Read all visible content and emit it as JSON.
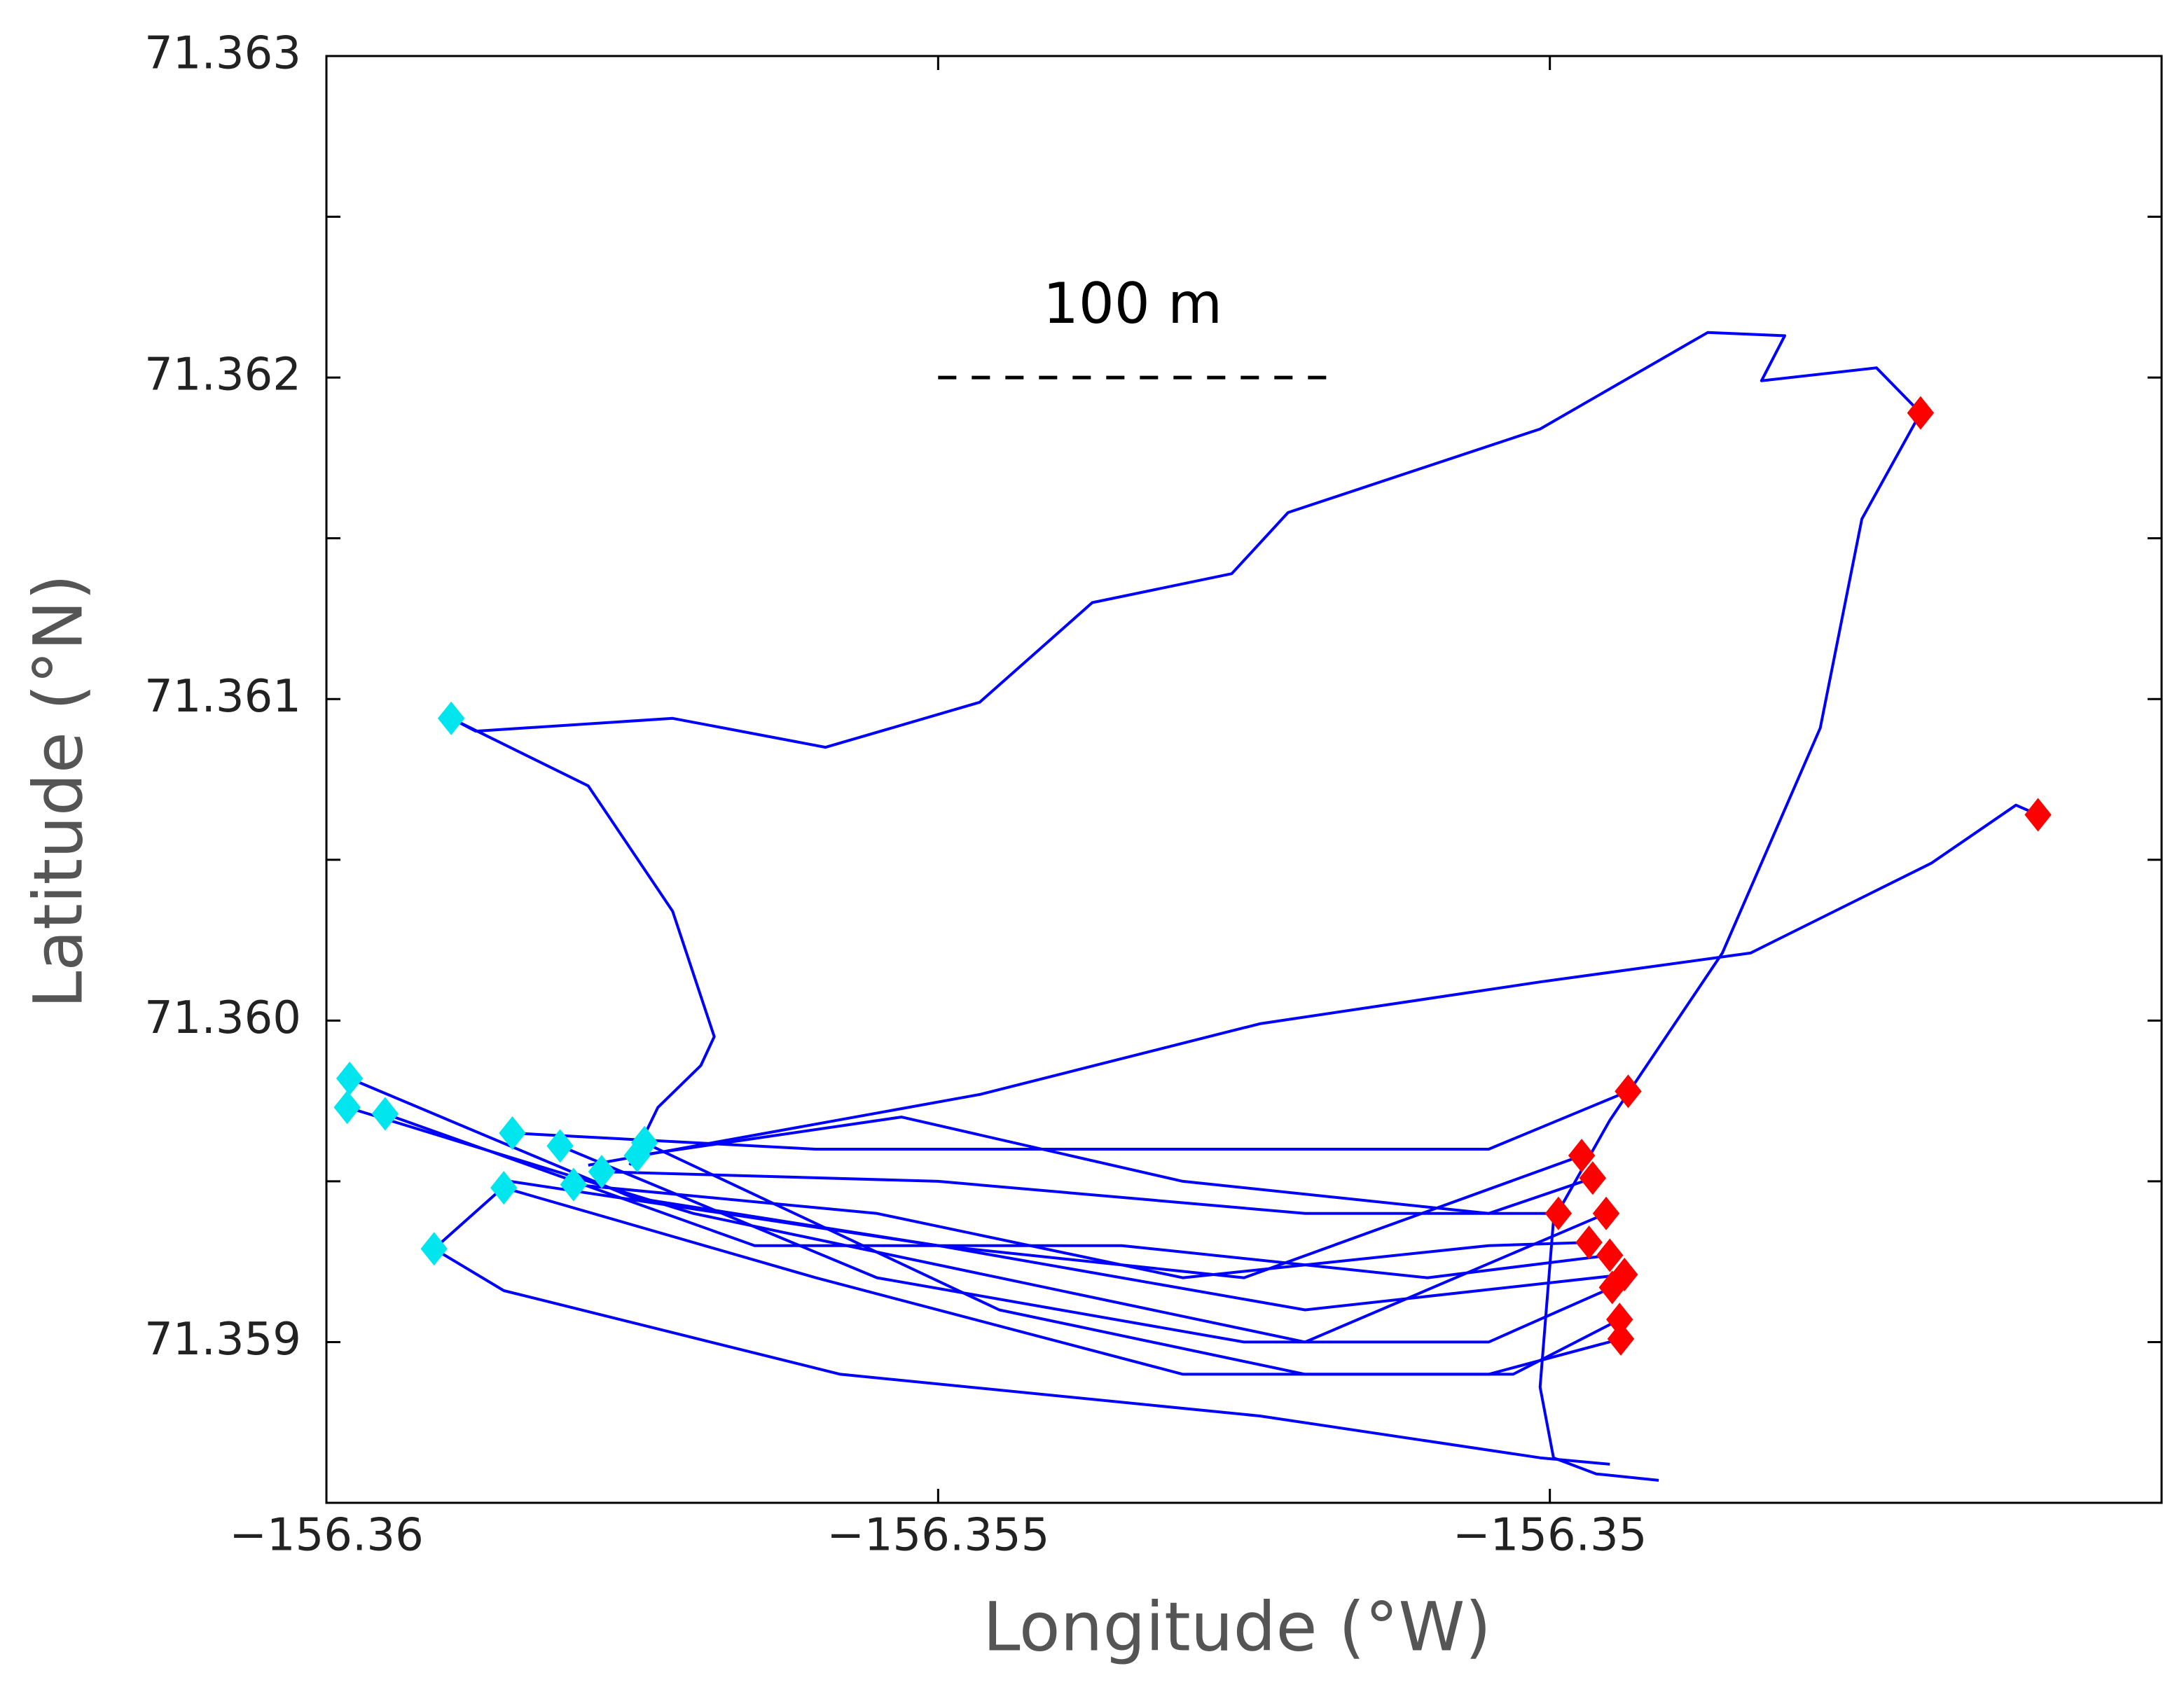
{
  "chart_data": {
    "type": "line",
    "x_label": "Longitude (°W)",
    "y_label": "Latitude (°N)",
    "xlim": [
      -156.36,
      -156.345
    ],
    "ylim": [
      71.3585,
      71.363
    ],
    "xticks": [
      {
        "value": -156.36,
        "label": "−156.36"
      },
      {
        "value": -156.355,
        "label": "−156.355"
      },
      {
        "value": -156.35,
        "label": "−156.35"
      }
    ],
    "yticks": [
      71.363,
      71.362,
      71.361,
      {
        "value": 71.36,
        "label": "71.360"
      },
      71.359
    ],
    "yticks_minor": [
      71.3625,
      71.3615,
      71.3605,
      71.3595
    ],
    "scale_bar": {
      "label": "100 m",
      "x": [
        -156.355,
        -156.35182
      ],
      "y": 71.362
    },
    "track_color": "#0000ff",
    "tracks": [
      {
        "x": [
          -156.35898,
          -156.35878,
          -156.35717,
          -156.35592,
          -156.35466,
          -156.35374,
          -156.3526,
          -156.35214,
          -156.35008,
          -156.34871,
          -156.34808,
          -156.34827,
          -156.34733,
          -156.34697
        ],
        "y": [
          71.36094,
          71.3609,
          71.36094,
          71.36085,
          71.36099,
          71.3613,
          71.36139,
          71.36158,
          71.36184,
          71.36214,
          71.36213,
          71.36199,
          71.36203,
          71.36189
        ]
      },
      {
        "x": [
          -156.34697,
          -156.34745,
          -156.34779,
          -156.34859,
          -156.34951,
          -156.34997,
          -156.35008,
          -156.34997,
          -156.34962,
          -156.34911
        ],
        "y": [
          71.36189,
          71.36156,
          71.36091,
          71.36021,
          71.35969,
          71.35938,
          71.35886,
          71.35864,
          71.35859,
          71.35857
        ]
      },
      {
        "x": [
          -156.35786,
          -156.35466,
          -156.35237,
          -156.35008,
          -156.34836,
          -156.34688,
          -156.34619,
          -156.34601
        ],
        "y": [
          71.35955,
          71.35977,
          71.35999,
          71.36012,
          71.36021,
          71.36049,
          71.36067,
          71.36064
        ]
      },
      {
        "x": [
          -156.35912,
          -156.35855,
          -156.3558,
          -156.35237,
          -156.35008,
          -156.34951
        ],
        "y": [
          71.35929,
          71.35916,
          71.3589,
          71.35877,
          71.35864,
          71.35862
        ]
      },
      {
        "x": [
          -156.35898,
          -156.35786,
          -156.35717,
          -156.35683,
          -156.35694,
          -156.35729,
          -156.35752
        ],
        "y": [
          71.36094,
          71.36073,
          71.36034,
          71.35995,
          71.35986,
          71.35973,
          71.35955
        ]
      },
      {
        "x": [
          -156.35981,
          -156.3575,
          -156.355,
          -156.3525,
          -156.34974
        ],
        "y": [
          71.35982,
          71.35945,
          71.3593,
          71.3592,
          71.35958
        ]
      },
      {
        "x": [
          -156.35983,
          -156.357,
          -156.3545,
          -156.352,
          -156.34954
        ],
        "y": [
          71.35973,
          71.3594,
          71.3592,
          71.359,
          71.3594
        ]
      },
      {
        "x": [
          -156.35952,
          -156.3565,
          -156.3535,
          -156.351,
          -156.34951
        ],
        "y": [
          71.35971,
          71.3593,
          71.3593,
          71.3592,
          71.35927
        ]
      },
      {
        "x": [
          -156.35848,
          -156.356,
          -156.353,
          -156.3505,
          -156.34936
        ],
        "y": [
          71.35965,
          71.3596,
          71.3596,
          71.3596,
          71.35978
        ]
      },
      {
        "x": [
          -156.35809,
          -156.3555,
          -156.3525,
          -156.3505,
          -156.34949
        ],
        "y": [
          71.35961,
          71.3592,
          71.359,
          71.359,
          71.35917
        ]
      },
      {
        "x": [
          -156.35855,
          -156.356,
          -156.353,
          -156.3505,
          -156.34942
        ],
        "y": [
          71.35948,
          71.3592,
          71.3589,
          71.3589,
          71.35901
        ]
      },
      {
        "x": [
          -156.35775,
          -156.355,
          -156.352,
          -156.34993
        ],
        "y": [
          71.35953,
          71.3595,
          71.3594,
          71.3594
        ]
      },
      {
        "x": [
          -156.3574,
          -156.3545,
          -156.352,
          -156.3503,
          -156.34943
        ],
        "y": [
          71.35962,
          71.3591,
          71.3589,
          71.3589,
          71.35907
        ]
      },
      {
        "x": [
          -156.35798,
          -156.3555,
          -156.353,
          -156.3505,
          -156.34968
        ],
        "y": [
          71.35949,
          71.3594,
          71.3592,
          71.3593,
          71.35931
        ]
      },
      {
        "x": [
          -156.35746,
          -156.3553,
          -156.353,
          -156.3505,
          -156.34965
        ],
        "y": [
          71.35958,
          71.3597,
          71.3595,
          71.3594,
          71.35951
        ]
      },
      {
        "x": [
          -156.34939,
          -156.352,
          -156.355,
          -156.3585,
          -156.35912
        ],
        "y": [
          71.35921,
          71.3591,
          71.3593,
          71.3595,
          71.35929
        ]
      }
    ],
    "start_points": {
      "color": "#00e5ee",
      "x": [
        -156.35981,
        -156.35983,
        -156.35952,
        -156.35848,
        -156.35809,
        -156.35855,
        -156.35775,
        -156.3574,
        -156.35798,
        -156.35746,
        -156.35898,
        -156.35912
      ],
      "y": [
        71.35982,
        71.35973,
        71.35971,
        71.35965,
        71.35961,
        71.35948,
        71.35953,
        71.35962,
        71.35949,
        71.35958,
        71.36094,
        71.35929
      ]
    },
    "end_points": {
      "color": "#ff0000",
      "x": [
        -156.34936,
        -156.34974,
        -156.34965,
        -156.34993,
        -156.34954,
        -156.34968,
        -156.34951,
        -156.34939,
        -156.34949,
        -156.34943,
        -156.34942,
        -156.34697,
        -156.34601
      ],
      "y": [
        71.35978,
        71.35958,
        71.35951,
        71.3594,
        71.3594,
        71.35931,
        71.35927,
        71.35921,
        71.35917,
        71.35907,
        71.35901,
        71.36189,
        71.36064
      ]
    }
  }
}
